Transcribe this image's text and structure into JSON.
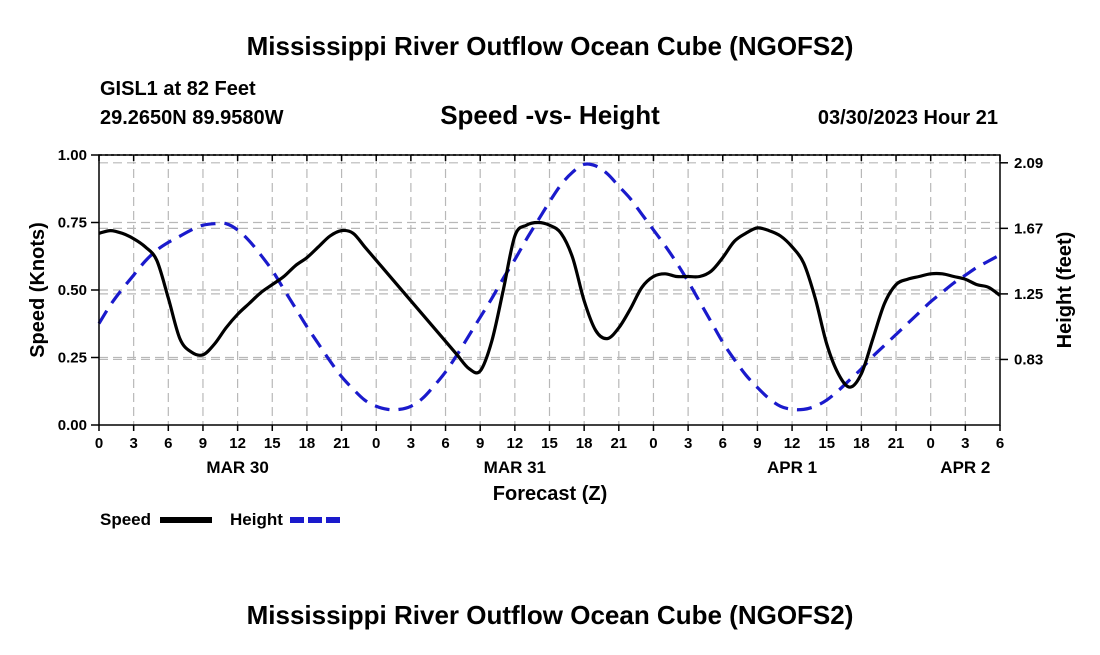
{
  "chart_data": {
    "type": "line",
    "title": "Mississippi River Outflow Ocean Cube (NGOFS2)",
    "title_repeat": "Mississippi River Outflow Ocean Cube (NGOFS2)",
    "station": "GISL1 at 82 Feet",
    "location": "29.2650N  89.9580W",
    "subtitle": "Speed -vs- Height",
    "timestamp": "03/30/2023 Hour 21",
    "xlabel": "Forecast (Z)",
    "ylabel_left": "Speed (Knots)",
    "ylabel_right": "Height (feet)",
    "x_unit": "hours since 03/30 00Z",
    "xlim": [
      0,
      78
    ],
    "ylim_left": [
      0,
      1
    ],
    "ylim_right": [
      0.41,
      2.14
    ],
    "left_ticks": [
      {
        "value": 0,
        "label": "0.00"
      },
      {
        "value": 0.25,
        "label": "0.25"
      },
      {
        "value": 0.5,
        "label": "0.50"
      },
      {
        "value": 0.75,
        "label": "0.75"
      },
      {
        "value": 1.0,
        "label": "1.00"
      }
    ],
    "right_ticks": [
      {
        "value": 0.83,
        "label": "0.83"
      },
      {
        "value": 1.25,
        "label": "1.25"
      },
      {
        "value": 1.67,
        "label": "1.67"
      },
      {
        "value": 2.09,
        "label": "2.09"
      }
    ],
    "x_ticks": [
      {
        "hour": 0,
        "label": "0"
      },
      {
        "hour": 3,
        "label": "3"
      },
      {
        "hour": 6,
        "label": "6"
      },
      {
        "hour": 9,
        "label": "9"
      },
      {
        "hour": 12,
        "label": "12"
      },
      {
        "hour": 15,
        "label": "15"
      },
      {
        "hour": 18,
        "label": "18"
      },
      {
        "hour": 21,
        "label": "21"
      },
      {
        "hour": 24,
        "label": "0"
      },
      {
        "hour": 27,
        "label": "3"
      },
      {
        "hour": 30,
        "label": "6"
      },
      {
        "hour": 33,
        "label": "9"
      },
      {
        "hour": 36,
        "label": "12"
      },
      {
        "hour": 39,
        "label": "15"
      },
      {
        "hour": 42,
        "label": "18"
      },
      {
        "hour": 45,
        "label": "21"
      },
      {
        "hour": 48,
        "label": "0"
      },
      {
        "hour": 51,
        "label": "3"
      },
      {
        "hour": 54,
        "label": "6"
      },
      {
        "hour": 57,
        "label": "9"
      },
      {
        "hour": 60,
        "label": "12"
      },
      {
        "hour": 63,
        "label": "15"
      },
      {
        "hour": 66,
        "label": "18"
      },
      {
        "hour": 69,
        "label": "21"
      },
      {
        "hour": 72,
        "label": "0"
      },
      {
        "hour": 75,
        "label": "3"
      },
      {
        "hour": 78,
        "label": "6"
      }
    ],
    "date_labels": [
      {
        "hour": 12,
        "label": "MAR 30"
      },
      {
        "hour": 36,
        "label": "MAR 31"
      },
      {
        "hour": 60,
        "label": "APR 1"
      },
      {
        "hour": 75,
        "label": "APR 2"
      }
    ],
    "series": [
      {
        "name": "Speed",
        "axis": "left",
        "color": "#000000",
        "style": "solid",
        "x": [
          0,
          1,
          2,
          3,
          4,
          5,
          6,
          7,
          8,
          9,
          10,
          11,
          12,
          13,
          14,
          15,
          16,
          17,
          18,
          19,
          20,
          21,
          22,
          23,
          24,
          25,
          26,
          27,
          28,
          29,
          30,
          31,
          32,
          33,
          34,
          35,
          36,
          37,
          38,
          39,
          40,
          41,
          42,
          43,
          44,
          45,
          46,
          47,
          48,
          49,
          50,
          51,
          52,
          53,
          54,
          55,
          56,
          57,
          58,
          59,
          60,
          61,
          62,
          63,
          64,
          65,
          66,
          67,
          68,
          69,
          70,
          71,
          72,
          73,
          74,
          75,
          76,
          77,
          78
        ],
        "values": [
          0.71,
          0.72,
          0.71,
          0.69,
          0.66,
          0.61,
          0.47,
          0.32,
          0.27,
          0.26,
          0.3,
          0.36,
          0.41,
          0.45,
          0.49,
          0.52,
          0.55,
          0.59,
          0.62,
          0.66,
          0.7,
          0.72,
          0.71,
          0.66,
          0.61,
          0.56,
          0.51,
          0.46,
          0.41,
          0.36,
          0.31,
          0.26,
          0.21,
          0.2,
          0.31,
          0.5,
          0.7,
          0.74,
          0.75,
          0.74,
          0.71,
          0.62,
          0.46,
          0.35,
          0.32,
          0.36,
          0.43,
          0.51,
          0.55,
          0.56,
          0.55,
          0.55,
          0.55,
          0.57,
          0.62,
          0.68,
          0.71,
          0.73,
          0.72,
          0.7,
          0.66,
          0.6,
          0.47,
          0.3,
          0.19,
          0.14,
          0.19,
          0.32,
          0.45,
          0.52,
          0.54,
          0.55,
          0.56,
          0.56,
          0.55,
          0.54,
          0.52,
          0.51,
          0.48
        ]
      },
      {
        "name": "Height",
        "axis": "right",
        "color": "#1a1acc",
        "style": "dashed",
        "x": [
          0,
          1,
          2,
          3,
          4,
          5,
          6,
          7,
          8,
          9,
          10,
          11,
          12,
          13,
          14,
          15,
          16,
          17,
          18,
          19,
          20,
          21,
          22,
          23,
          24,
          25,
          26,
          27,
          28,
          29,
          30,
          31,
          32,
          33,
          34,
          35,
          36,
          37,
          38,
          39,
          40,
          41,
          42,
          43,
          44,
          45,
          46,
          47,
          48,
          49,
          50,
          51,
          52,
          53,
          54,
          55,
          56,
          57,
          58,
          59,
          60,
          61,
          62,
          63,
          64,
          65,
          66,
          67,
          68,
          69,
          70,
          71,
          72,
          73,
          74,
          75,
          76,
          77,
          78
        ],
        "values": [
          1.06,
          1.18,
          1.28,
          1.37,
          1.46,
          1.53,
          1.58,
          1.62,
          1.66,
          1.69,
          1.7,
          1.7,
          1.66,
          1.59,
          1.5,
          1.4,
          1.28,
          1.16,
          1.04,
          0.93,
          0.82,
          0.72,
          0.64,
          0.57,
          0.53,
          0.51,
          0.51,
          0.53,
          0.58,
          0.66,
          0.75,
          0.86,
          0.98,
          1.1,
          1.22,
          1.35,
          1.47,
          1.6,
          1.72,
          1.84,
          1.95,
          2.03,
          2.08,
          2.07,
          2.02,
          1.94,
          1.86,
          1.76,
          1.66,
          1.56,
          1.45,
          1.33,
          1.2,
          1.07,
          0.94,
          0.83,
          0.73,
          0.65,
          0.58,
          0.53,
          0.51,
          0.51,
          0.53,
          0.57,
          0.63,
          0.7,
          0.77,
          0.85,
          0.92,
          0.99,
          1.06,
          1.13,
          1.2,
          1.26,
          1.32,
          1.37,
          1.42,
          1.46,
          1.5
        ]
      }
    ],
    "legend": [
      {
        "label": "Speed",
        "color": "#000000",
        "style": "solid"
      },
      {
        "label": "Height",
        "color": "#1a1acc",
        "style": "dashed"
      }
    ],
    "grid": true
  }
}
